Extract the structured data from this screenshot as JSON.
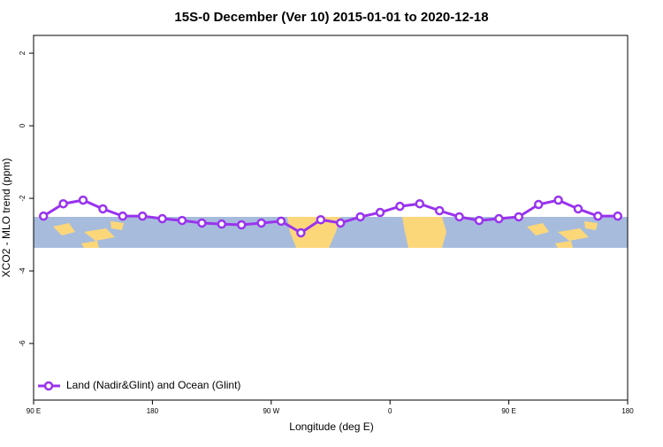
{
  "chart_data": {
    "type": "line",
    "title": "15S-0 December (Ver 10)   2015-01-01 to 2020-12-18",
    "x_label": "Longitude (deg E)",
    "y_label": "XCO2 - MLO trend (ppm)",
    "x": [
      97.5,
      112.5,
      127.5,
      142.5,
      157.5,
      172.5,
      187.5,
      202.5,
      217.5,
      232.5,
      247.5,
      262.5,
      277.5,
      292.5,
      307.5,
      322.5,
      337.5,
      352.5,
      367.5,
      382.5,
      397.5,
      412.5,
      427.5,
      442.5,
      457.5,
      472.5,
      487.5,
      502.5,
      517.5,
      532.5
    ],
    "series": [
      {
        "name": "Land (Nadir&Glint) and Ocean (Glint)",
        "color": "#9933ee",
        "values": [
          -2.49,
          -2.15,
          -2.05,
          -2.29,
          -2.49,
          -2.49,
          -2.56,
          -2.61,
          -2.68,
          -2.71,
          -2.73,
          -2.68,
          -2.63,
          -2.95,
          -2.59,
          -2.68,
          -2.51,
          -2.39,
          -2.22,
          -2.15,
          -2.34,
          -2.51,
          -2.61,
          -2.56,
          -2.51,
          -2.17,
          -2.05,
          -2.29,
          -2.49,
          -2.49
        ]
      }
    ],
    "xlim": [
      90,
      540
    ],
    "xticks": [
      {
        "value": 90,
        "label": "90 E"
      },
      180,
      {
        "value": 270,
        "label": "90 W"
      },
      {
        "value": 360,
        "label": "0"
      },
      {
        "value": 450,
        "label": "90 E"
      },
      {
        "value": 540,
        "label": "180"
      }
    ],
    "ylim": [
      -7.56,
      2.49
    ],
    "yticks": [
      -6,
      -4,
      -2,
      0,
      2
    ],
    "legend": "bottom-left"
  }
}
